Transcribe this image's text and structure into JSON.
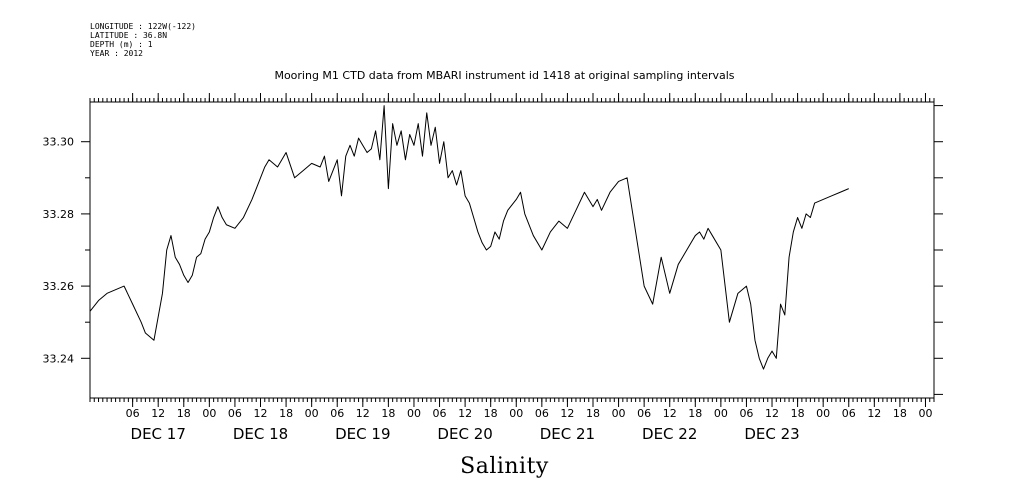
{
  "header": {
    "longitude": "LONGITUDE : 122W(-122)",
    "latitude": "LATITUDE : 36.8N",
    "depth": "DEPTH (m) : 1",
    "year": "YEAR : 2012"
  },
  "chart_data": {
    "type": "line",
    "title": "Mooring M1 CTD data from MBARI instrument id 1418 at original sampling intervals",
    "ylabel": "",
    "xlabel": "Salinity",
    "ylim": [
      33.229,
      33.311
    ],
    "xlim": [
      -28,
      170
    ],
    "yticks": [
      33.24,
      33.26,
      33.28,
      33.3
    ],
    "ytick_labels": [
      "33.24",
      "33.26",
      "33.28",
      "33.30"
    ],
    "hour_ticks": [
      -18,
      -12,
      -6,
      0,
      6,
      12,
      18,
      24,
      30,
      36,
      42,
      48,
      54,
      60,
      66,
      72,
      78,
      84,
      90,
      96,
      102,
      108,
      114,
      120,
      126,
      132,
      138,
      144,
      150,
      156,
      162,
      168
    ],
    "hour_tick_labels": [
      "06",
      "12",
      "18",
      "00",
      "06",
      "12",
      "18",
      "00",
      "06",
      "12",
      "18",
      "00",
      "06",
      "12",
      "18",
      "00",
      "06",
      "12",
      "18",
      "00",
      "06",
      "12",
      "18",
      "00",
      "06",
      "12",
      "18",
      "00",
      "06",
      "12",
      "18",
      "00"
    ],
    "day_labels": [
      {
        "x": -12,
        "label": "DEC 17"
      },
      {
        "x": 12,
        "label": "DEC 18"
      },
      {
        "x": 36,
        "label": "DEC 19"
      },
      {
        "x": 60,
        "label": "DEC 20"
      },
      {
        "x": 84,
        "label": "DEC 21"
      },
      {
        "x": 108,
        "label": "DEC 22"
      },
      {
        "x": 132,
        "label": "DEC 23"
      }
    ],
    "x_unit": "hours since 2012-12-18 00:00",
    "series": [
      {
        "name": "Salinity",
        "x": [
          -28,
          -26,
          -24,
          -22,
          -20,
          -18,
          -16,
          -15,
          -13,
          -11,
          -10,
          -9,
          -8,
          -7,
          -6,
          -5,
          -4,
          -3,
          -2,
          -1,
          0,
          1,
          2,
          3,
          4,
          6,
          8,
          10,
          12,
          13,
          14,
          16,
          18,
          20,
          22,
          24,
          26,
          27,
          28,
          30,
          31,
          32,
          33,
          34,
          35,
          36,
          37,
          38,
          39,
          40,
          41,
          42,
          43,
          44,
          45,
          46,
          47,
          48,
          49,
          50,
          51,
          52,
          53,
          54,
          55,
          56,
          57,
          58,
          59,
          60,
          61,
          62,
          63,
          64,
          65,
          66,
          67,
          68,
          69,
          70,
          72,
          73,
          74,
          76,
          78,
          80,
          82,
          84,
          86,
          88,
          90,
          91,
          92,
          94,
          96,
          98,
          100,
          102,
          104,
          106,
          108,
          110,
          111,
          112,
          113,
          114,
          115,
          116,
          117,
          118,
          120,
          122,
          124,
          126,
          127,
          128,
          129,
          130,
          131,
          132,
          133,
          134,
          135,
          136,
          137,
          138,
          139,
          140,
          141,
          142,
          144,
          146,
          148,
          150
        ],
        "values": [
          33.253,
          33.256,
          33.258,
          33.259,
          33.26,
          33.255,
          33.25,
          33.247,
          33.245,
          33.258,
          33.27,
          33.274,
          33.268,
          33.266,
          33.263,
          33.261,
          33.263,
          33.268,
          33.269,
          33.273,
          33.275,
          33.279,
          33.282,
          33.279,
          33.277,
          33.276,
          33.279,
          33.284,
          33.29,
          33.293,
          33.295,
          33.293,
          33.297,
          33.29,
          33.292,
          33.294,
          33.293,
          33.296,
          33.289,
          33.295,
          33.285,
          33.296,
          33.299,
          33.296,
          33.301,
          33.299,
          33.297,
          33.298,
          33.303,
          33.295,
          33.31,
          33.287,
          33.305,
          33.299,
          33.303,
          33.295,
          33.302,
          33.299,
          33.305,
          33.296,
          33.308,
          33.299,
          33.304,
          33.294,
          33.3,
          33.29,
          33.292,
          33.288,
          33.292,
          33.285,
          33.283,
          33.279,
          33.275,
          33.272,
          33.27,
          33.271,
          33.275,
          33.273,
          33.278,
          33.281,
          33.284,
          33.286,
          33.28,
          33.274,
          33.27,
          33.275,
          33.278,
          33.276,
          33.281,
          33.286,
          33.282,
          33.284,
          33.281,
          33.286,
          33.289,
          33.29,
          33.275,
          33.26,
          33.255,
          33.268,
          33.258,
          33.266,
          33.268,
          33.27,
          33.272,
          33.274,
          33.275,
          33.273,
          33.276,
          33.274,
          33.27,
          33.25,
          33.258,
          33.26,
          33.255,
          33.245,
          33.24,
          33.237,
          33.24,
          33.242,
          33.24,
          33.255,
          33.252,
          33.268,
          33.275,
          33.279,
          33.276,
          33.28,
          33.279,
          33.283,
          33.284,
          33.285,
          33.286,
          33.287
        ]
      }
    ]
  }
}
